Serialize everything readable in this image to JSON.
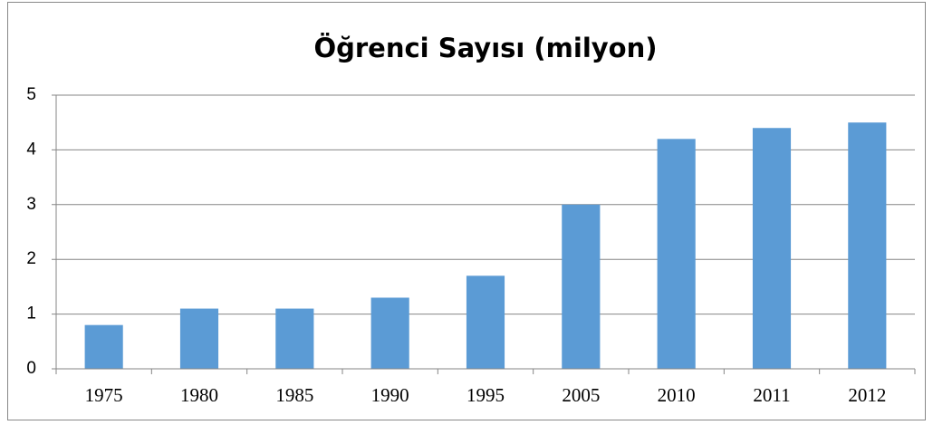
{
  "chart_data": {
    "type": "bar",
    "title": "Öğrenci Sayısı (milyon)",
    "categories": [
      "1975",
      "1980",
      "1985",
      "1990",
      "1995",
      "2005",
      "2010",
      "2011",
      "2012"
    ],
    "values": [
      0.8,
      1.1,
      1.1,
      1.3,
      1.7,
      3.0,
      4.2,
      4.4,
      4.5
    ],
    "color": "#5b9bd5",
    "ylim": [
      0,
      5
    ],
    "yticks": [
      0,
      1,
      2,
      3,
      4,
      5
    ],
    "grid": true
  }
}
